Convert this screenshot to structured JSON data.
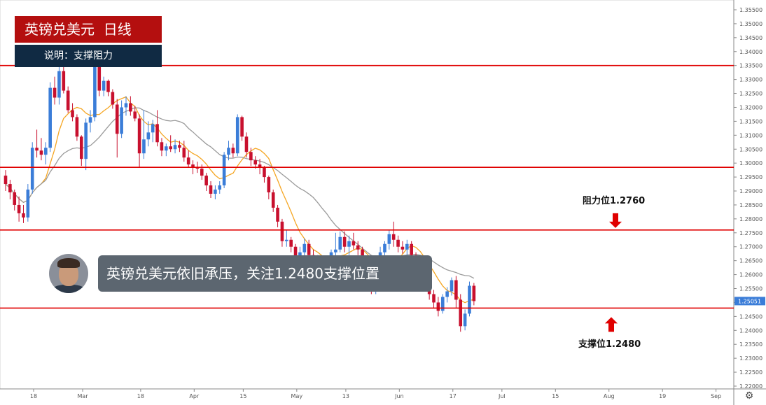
{
  "header": {
    "title": "英镑兑美元  日线",
    "subtitle": "说明：支撑阻力"
  },
  "annotation": {
    "note": "英镑兑美元依旧承压，关注1.2480支撑位置"
  },
  "levels": {
    "resistance_label": "阻力位1.2760",
    "support_label": "支撑位1.2480"
  },
  "colors": {
    "up_candle": "#3b7dd8",
    "down_candle": "#c8102e",
    "level_line": "#e00000",
    "ma_fast": "#f5a623",
    "ma_slow": "#9b9b9b",
    "arrow": "#e00000",
    "last_price_bg": "#3b7dd8"
  },
  "chart_data": {
    "type": "candlestick",
    "y_axis": {
      "range": [
        1.22,
        1.356
      ],
      "ticks": [
        "1.35500",
        "1.35000",
        "1.34500",
        "1.34000",
        "1.33500",
        "1.33000",
        "1.32500",
        "1.32000",
        "1.31500",
        "1.31000",
        "1.30500",
        "1.30000",
        "1.29500",
        "1.29000",
        "1.28500",
        "1.28000",
        "1.27500",
        "1.27000",
        "1.26500",
        "1.26000",
        "1.25500",
        "1.25000",
        "1.24500",
        "1.24000",
        "1.23500",
        "1.23000",
        "1.22500",
        "1.22000"
      ],
      "last_price": "1.25051"
    },
    "x_axis": {
      "ticks": [
        "18",
        "Mar",
        "18",
        "Apr",
        "15",
        "May",
        "13",
        "Jun",
        "17",
        "Jul",
        "15",
        "Aug",
        "19",
        "Sep"
      ],
      "tick_index": [
        0,
        11,
        24,
        36,
        47,
        59,
        70,
        82,
        94,
        105,
        117,
        129,
        141,
        153
      ]
    },
    "horizontal_levels": [
      1.335,
      1.2985,
      1.276,
      1.248
    ],
    "candles": [
      [
        1.2955,
        1.2975,
        1.29,
        1.2925
      ],
      [
        1.2925,
        1.294,
        1.287,
        1.2895
      ],
      [
        1.2895,
        1.2905,
        1.283,
        1.285
      ],
      [
        1.285,
        1.288,
        1.279,
        1.282
      ],
      [
        1.282,
        1.285,
        1.2785,
        1.2805
      ],
      [
        1.2805,
        1.2925,
        1.279,
        1.2905
      ],
      [
        1.2905,
        1.3075,
        1.289,
        1.3055
      ],
      [
        1.3055,
        1.312,
        1.302,
        1.3045
      ],
      [
        1.3045,
        1.309,
        1.301,
        1.303
      ],
      [
        1.303,
        1.3075,
        1.2995,
        1.3055
      ],
      [
        1.3055,
        1.329,
        1.304,
        1.327
      ],
      [
        1.327,
        1.331,
        1.321,
        1.3235
      ],
      [
        1.3235,
        1.337,
        1.321,
        1.333
      ],
      [
        1.333,
        1.335,
        1.325,
        1.326
      ],
      [
        1.326,
        1.3275,
        1.318,
        1.319
      ],
      [
        1.319,
        1.3215,
        1.315,
        1.3165
      ],
      [
        1.3165,
        1.3175,
        1.308,
        1.3095
      ],
      [
        1.3095,
        1.31,
        1.299,
        1.3015
      ],
      [
        1.3015,
        1.316,
        1.2975,
        1.3145
      ],
      [
        1.3145,
        1.319,
        1.311,
        1.3165
      ],
      [
        1.3165,
        1.3375,
        1.315,
        1.336
      ],
      [
        1.336,
        1.3395,
        1.324,
        1.326
      ],
      [
        1.326,
        1.331,
        1.324,
        1.3295
      ],
      [
        1.3295,
        1.33,
        1.324,
        1.3255
      ],
      [
        1.3255,
        1.3265,
        1.3195,
        1.321
      ],
      [
        1.321,
        1.323,
        1.302,
        1.3105
      ],
      [
        1.3105,
        1.3225,
        1.309,
        1.32
      ],
      [
        1.32,
        1.324,
        1.317,
        1.3215
      ],
      [
        1.3215,
        1.324,
        1.317,
        1.3185
      ],
      [
        1.3185,
        1.3205,
        1.315,
        1.316
      ],
      [
        1.316,
        1.3175,
        1.2985,
        1.3035
      ],
      [
        1.3035,
        1.319,
        1.3015,
        1.3085
      ],
      [
        1.3085,
        1.315,
        1.306,
        1.311
      ],
      [
        1.311,
        1.3155,
        1.3075,
        1.314
      ],
      [
        1.314,
        1.319,
        1.306,
        1.3075
      ],
      [
        1.3075,
        1.309,
        1.3025,
        1.3045
      ],
      [
        1.3045,
        1.307,
        1.3025,
        1.306
      ],
      [
        1.306,
        1.31,
        1.304,
        1.305
      ],
      [
        1.305,
        1.3085,
        1.3035,
        1.3065
      ],
      [
        1.3065,
        1.308,
        1.304,
        1.3055
      ],
      [
        1.3055,
        1.308,
        1.3005,
        1.302
      ],
      [
        1.302,
        1.3045,
        1.2985,
        1.2995
      ],
      [
        1.2995,
        1.301,
        1.296,
        1.2985
      ],
      [
        1.2985,
        1.3005,
        1.2965,
        1.298
      ],
      [
        1.298,
        1.2995,
        1.294,
        1.2955
      ],
      [
        1.2955,
        1.2965,
        1.29,
        1.292
      ],
      [
        1.292,
        1.2935,
        1.2875,
        1.289
      ],
      [
        1.289,
        1.292,
        1.287,
        1.2905
      ],
      [
        1.2905,
        1.2935,
        1.289,
        1.292
      ],
      [
        1.292,
        1.304,
        1.291,
        1.303
      ],
      [
        1.303,
        1.308,
        1.301,
        1.3055
      ],
      [
        1.3055,
        1.307,
        1.302,
        1.3035
      ],
      [
        1.3035,
        1.3175,
        1.3025,
        1.3165
      ],
      [
        1.3165,
        1.317,
        1.308,
        1.3095
      ],
      [
        1.3095,
        1.311,
        1.302,
        1.304
      ],
      [
        1.304,
        1.3055,
        1.299,
        1.301
      ],
      [
        1.301,
        1.3025,
        1.298,
        1.2995
      ],
      [
        1.2995,
        1.3015,
        1.296,
        1.2985
      ],
      [
        1.2985,
        1.299,
        1.293,
        1.295
      ],
      [
        1.295,
        1.2955,
        1.287,
        1.2895
      ],
      [
        1.2895,
        1.2905,
        1.2825,
        1.284
      ],
      [
        1.284,
        1.285,
        1.277,
        1.279
      ],
      [
        1.279,
        1.28,
        1.27,
        1.272
      ],
      [
        1.272,
        1.276,
        1.27,
        1.2725
      ],
      [
        1.2725,
        1.2735,
        1.268,
        1.27
      ],
      [
        1.27,
        1.271,
        1.265,
        1.2665
      ],
      [
        1.2665,
        1.27,
        1.264,
        1.268
      ],
      [
        1.268,
        1.273,
        1.2665,
        1.271
      ],
      [
        1.271,
        1.2725,
        1.266,
        1.267
      ],
      [
        1.267,
        1.269,
        1.263,
        1.265
      ],
      [
        1.265,
        1.267,
        1.262,
        1.264
      ],
      [
        1.264,
        1.266,
        1.261,
        1.262
      ],
      [
        1.262,
        1.266,
        1.26,
        1.265
      ],
      [
        1.265,
        1.269,
        1.263,
        1.268
      ],
      [
        1.268,
        1.275,
        1.2665,
        1.269
      ],
      [
        1.269,
        1.2755,
        1.268,
        1.2735
      ],
      [
        1.2735,
        1.2755,
        1.268,
        1.27
      ],
      [
        1.27,
        1.274,
        1.267,
        1.272
      ],
      [
        1.272,
        1.275,
        1.269,
        1.2705
      ],
      [
        1.2705,
        1.272,
        1.267,
        1.269
      ],
      [
        1.269,
        1.27,
        1.257,
        1.26
      ],
      [
        1.26,
        1.261,
        1.254,
        1.256
      ],
      [
        1.256,
        1.258,
        1.253,
        1.2545
      ],
      [
        1.2545,
        1.261,
        1.253,
        1.259
      ],
      [
        1.259,
        1.27,
        1.258,
        1.268
      ],
      [
        1.268,
        1.272,
        1.2655,
        1.271
      ],
      [
        1.271,
        1.276,
        1.269,
        1.2745
      ],
      [
        1.2745,
        1.279,
        1.27,
        1.2725
      ],
      [
        1.2725,
        1.274,
        1.268,
        1.27
      ],
      [
        1.27,
        1.272,
        1.2675,
        1.269
      ],
      [
        1.269,
        1.2725,
        1.267,
        1.271
      ],
      [
        1.271,
        1.272,
        1.2655,
        1.267
      ],
      [
        1.267,
        1.268,
        1.26,
        1.263
      ],
      [
        1.263,
        1.264,
        1.2575,
        1.259
      ],
      [
        1.259,
        1.26,
        1.255,
        1.2565
      ],
      [
        1.2565,
        1.258,
        1.251,
        1.253
      ],
      [
        1.253,
        1.2545,
        1.248,
        1.25
      ],
      [
        1.25,
        1.252,
        1.245,
        1.247
      ],
      [
        1.247,
        1.253,
        1.246,
        1.252
      ],
      [
        1.252,
        1.2555,
        1.25,
        1.254
      ],
      [
        1.254,
        1.259,
        1.2525,
        1.258
      ],
      [
        1.258,
        1.2595,
        1.248,
        1.251
      ],
      [
        1.251,
        1.253,
        1.2395,
        1.2415
      ],
      [
        1.2415,
        1.2475,
        1.24,
        1.246
      ],
      [
        1.246,
        1.2575,
        1.245,
        1.256
      ],
      [
        1.256,
        1.257,
        1.249,
        1.2505
      ]
    ]
  }
}
